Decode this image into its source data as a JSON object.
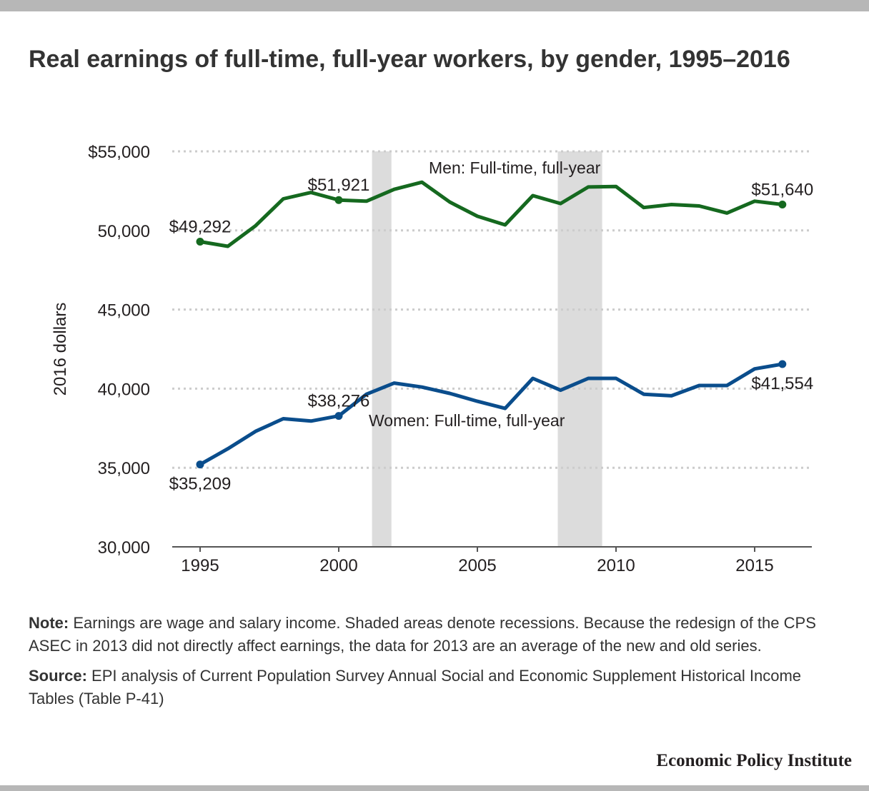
{
  "title": "Real earnings of full-time, full-year workers, by gender, 1995–2016",
  "note": {
    "label": "Note:",
    "text": "Earnings are wage and salary income. Shaded areas denote recessions. Because the redesign of the CPS ASEC in 2013 did not directly affect earnings, the data for 2013 are an average of the new and old series."
  },
  "source": {
    "label": "Source:",
    "text": "EPI analysis of Current Population Survey Annual Social and Economic Supplement Historical Income Tables (Table P-41)"
  },
  "brand": "Economic Policy Institute",
  "colors": {
    "men": "#15691f",
    "women": "#0a4d8c",
    "recession": "#dcdcdc",
    "grid": "#cccccc",
    "axis": "#555555"
  },
  "chart_data": {
    "type": "line",
    "ylabel": "2016 dollars",
    "xlim": [
      1994,
      2018
    ],
    "ylim": [
      30000,
      55000
    ],
    "x": [
      1995,
      1996,
      1997,
      1998,
      1999,
      2000,
      2001,
      2002,
      2003,
      2004,
      2005,
      2006,
      2007,
      2008,
      2009,
      2010,
      2011,
      2012,
      2013,
      2014,
      2015,
      2016
    ],
    "x_ticks": [
      {
        "value": 1995,
        "label": "1995"
      },
      {
        "value": 2000,
        "label": "2000"
      },
      {
        "value": 2005,
        "label": "2005"
      },
      {
        "value": 2010,
        "label": "2010"
      },
      {
        "value": 2015,
        "label": "2015"
      }
    ],
    "y_ticks": [
      {
        "value": 30000,
        "label": "30,000"
      },
      {
        "value": 35000,
        "label": "35,000"
      },
      {
        "value": 40000,
        "label": "40,000"
      },
      {
        "value": 45000,
        "label": "45,000"
      },
      {
        "value": 50000,
        "label": "50,000"
      },
      {
        "value": 55000,
        "label": "$55,000"
      }
    ],
    "grid": true,
    "recessions": [
      [
        2001.2,
        2001.9
      ],
      [
        2007.9,
        2009.5
      ]
    ],
    "series": [
      {
        "name": "Men: Full-time, full-year",
        "color_key": "men",
        "values": [
          49292,
          49000,
          50300,
          52000,
          52400,
          51921,
          51850,
          52600,
          53050,
          51800,
          50900,
          50350,
          52200,
          51700,
          52750,
          52780,
          51450,
          51640,
          51550,
          51100,
          51850,
          51640
        ],
        "annotations": [
          {
            "x": 1995,
            "label": "$49,292",
            "position": "above"
          },
          {
            "x": 2000,
            "label": "$51,921",
            "position": "above"
          },
          {
            "x": 2016,
            "label": "$51,640",
            "position": "above"
          }
        ],
        "series_label_anchor": 2006
      },
      {
        "name": "Women: Full-time, full-year",
        "color_key": "women",
        "values": [
          35209,
          36200,
          37300,
          38100,
          37950,
          38276,
          39650,
          40350,
          40100,
          39700,
          39200,
          38750,
          40650,
          39900,
          40650,
          40650,
          39650,
          39550,
          40200,
          40200,
          41250,
          41554
        ],
        "annotations": [
          {
            "x": 1995,
            "label": "$35,209",
            "position": "below"
          },
          {
            "x": 2000,
            "label": "$38,276",
            "position": "above"
          },
          {
            "x": 2016,
            "label": "$41,554",
            "position": "below"
          }
        ],
        "series_label_anchor": 2005
      }
    ]
  }
}
